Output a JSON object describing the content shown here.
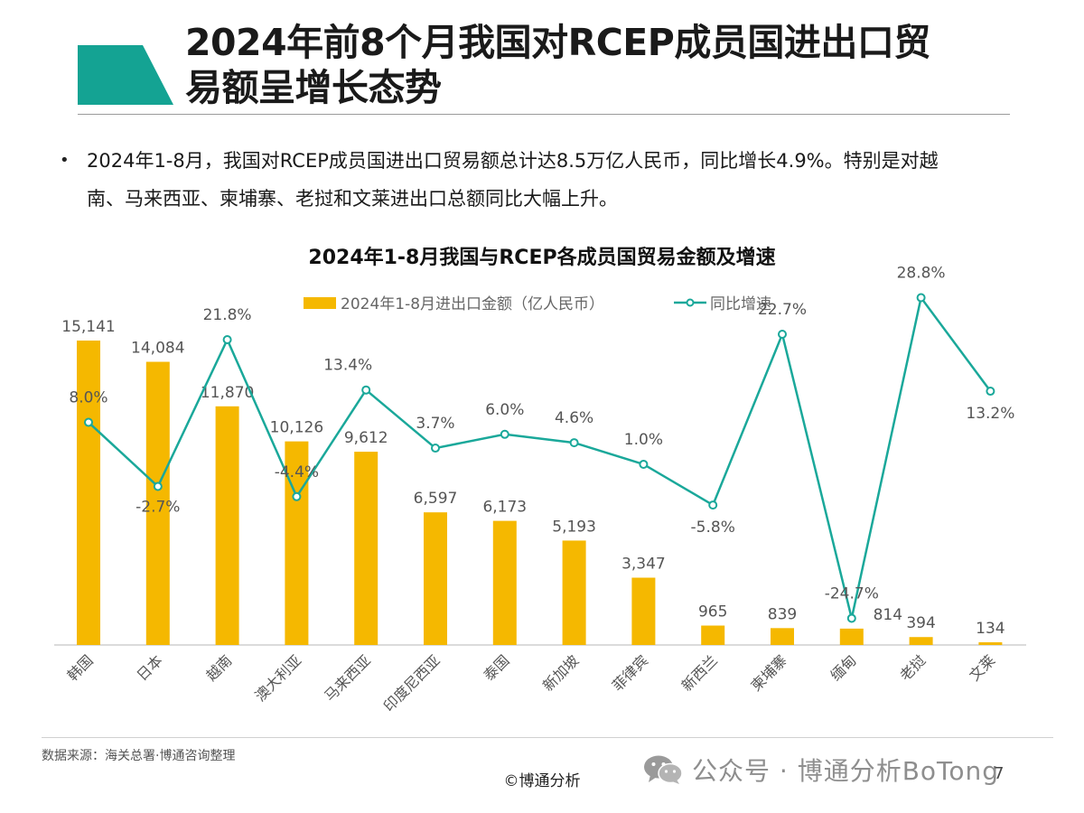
{
  "slide": {
    "title_line1": "2024年前8个月我国对RCEP成员国进出口贸",
    "title_line2": "易额呈增长态势",
    "bullet_line1": "2024年1-8月，我国对RCEP成员国进出口贸易额总计达8.5万亿人民币，同比增长4.9%。特别是对越",
    "bullet_line2": "南、马来西亚、柬埔寨、老挝和文莱进出口总额同比大幅上升。",
    "accent_color": "#14a393"
  },
  "chart_data": {
    "type": "bar+line",
    "title": "2024年1-8月我国与RCEP各成员国贸易金额及增速",
    "categories": [
      "韩国",
      "日本",
      "越南",
      "澳大利亚",
      "马来西亚",
      "印度尼西亚",
      "泰国",
      "新加坡",
      "菲律宾",
      "新西兰",
      "柬埔寨",
      "缅甸",
      "老挝",
      "文莱"
    ],
    "series": [
      {
        "name": "2024年1-8月进出口金额（亿人民币）",
        "type": "bar",
        "color": "#f5b800",
        "values": [
          15141,
          14084,
          11870,
          10126,
          9612,
          6597,
          6173,
          5193,
          3347,
          965,
          839,
          814,
          394,
          134
        ],
        "labels": [
          "15,141",
          "14,084",
          "11,870",
          "10,126",
          "9,612",
          "6,597",
          "6,173",
          "5,193",
          "3,347",
          "965",
          "839",
          "814",
          "394",
          "134"
        ]
      },
      {
        "name": "同比增速",
        "type": "line",
        "color": "#1aa89a",
        "values": [
          8.0,
          -2.7,
          21.8,
          -4.4,
          13.4,
          3.7,
          6.0,
          4.6,
          1.0,
          -5.8,
          22.7,
          -24.7,
          28.8,
          13.2
        ],
        "labels": [
          "8.0%",
          "-2.7%",
          "21.8%",
          "-4.4%",
          "13.4%",
          "3.7%",
          "6.0%",
          "4.6%",
          "1.0%",
          "-5.8%",
          "22.7%",
          "-24.7%",
          "28.8%",
          "13.2%"
        ]
      }
    ],
    "legend_position": "top-center",
    "grid": false
  },
  "footer": {
    "source": "数据来源：海关总署·博通咨询整理",
    "copyright": "©博通分析",
    "wechat": "公众号 · 博通分析BoTong",
    "page_number": "7"
  }
}
